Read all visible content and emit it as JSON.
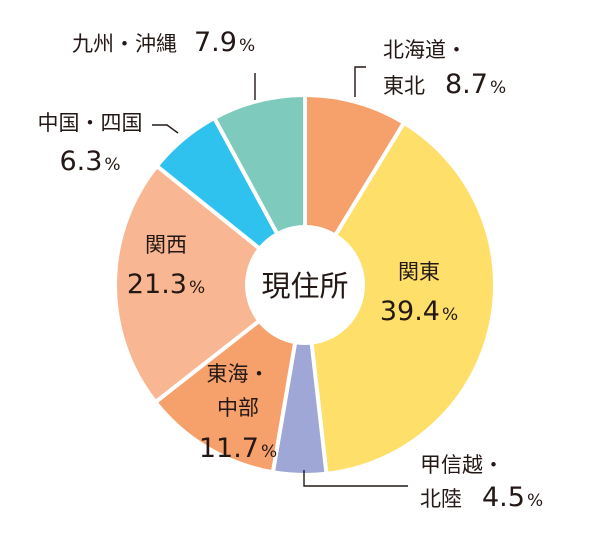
{
  "chart_data": {
    "type": "pie",
    "variant": "donut",
    "center_label": "現住所",
    "slices": [
      {
        "label": "北海道・東北",
        "lines": [
          "北海道・",
          "東北"
        ],
        "value": 8.7,
        "value_text": "8.7",
        "unit": "%",
        "color": "#f6a06b"
      },
      {
        "label": "関東",
        "lines": [
          "関東"
        ],
        "value": 39.4,
        "value_text": "39.4",
        "unit": "%",
        "color": "#fddf6a"
      },
      {
        "label": "甲信越・北陸",
        "lines": [
          "甲信越・",
          "北陸"
        ],
        "value": 4.5,
        "value_text": "4.5",
        "unit": "%",
        "color": "#9ea7d6"
      },
      {
        "label": "東海・中部",
        "lines": [
          "東海・",
          "中部"
        ],
        "value": 11.7,
        "value_text": "11.7",
        "unit": "%",
        "color": "#f6a06b"
      },
      {
        "label": "関西",
        "lines": [
          "関西"
        ],
        "value": 21.3,
        "value_text": "21.3",
        "unit": "%",
        "color": "#f8b792"
      },
      {
        "label": "中国・四国",
        "lines": [
          "中国・四国"
        ],
        "value": 6.3,
        "value_text": "6.3",
        "unit": "%",
        "color": "#2fc2ef"
      },
      {
        "label": "九州・沖縄",
        "lines": [
          "九州・沖縄"
        ],
        "value": 7.9,
        "value_text": "7.9",
        "unit": "%",
        "color": "#7ecbbd"
      }
    ]
  }
}
